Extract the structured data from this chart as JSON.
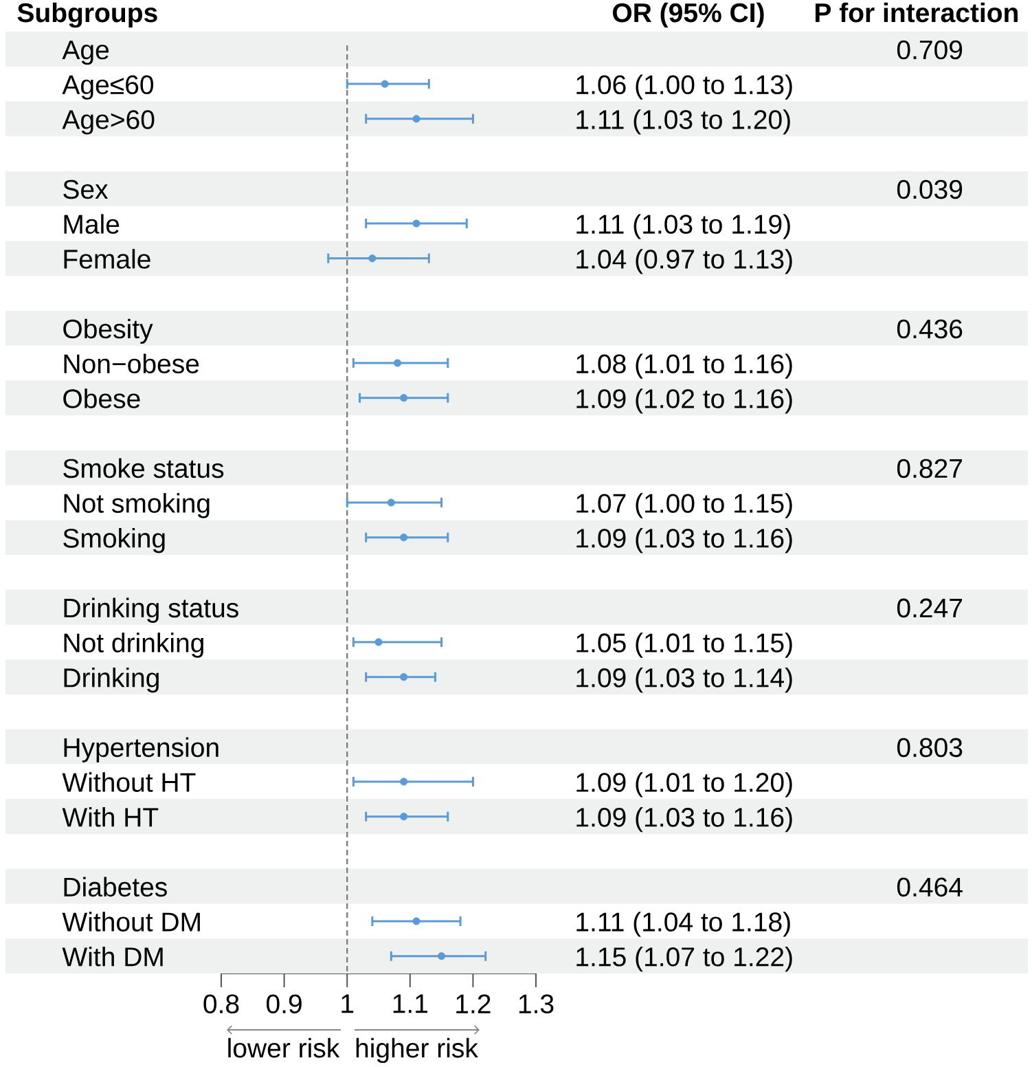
{
  "chart_data": {
    "type": "scatter",
    "orientation": "horizontal",
    "ylabel": "Subgroups",
    "annotations": [
      "OR (95% CI)",
      "P for interaction",
      "lower risk",
      "higher risk"
    ],
    "categories": [
      "Age",
      "Age≤60",
      "Age>60",
      null,
      "Sex",
      "Male",
      "Female",
      null,
      "Obesity",
      "Non−obese",
      "Obese",
      null,
      "Smoke status",
      "Not smoking",
      "Smoking",
      null,
      "Drinking status",
      "Not drinking",
      "Drinking",
      null,
      "Hypertension",
      "Without HT",
      "With HT",
      null,
      "Diabetes",
      "Without DM",
      "With DM"
    ],
    "values": [
      null,
      1.06,
      1.11,
      null,
      null,
      1.11,
      1.04,
      null,
      null,
      1.08,
      1.09,
      null,
      null,
      1.07,
      1.09,
      null,
      null,
      1.05,
      1.09,
      null,
      null,
      1.09,
      1.09,
      null,
      null,
      1.11,
      1.15
    ],
    "errors": [
      null,
      [
        1.0,
        1.13
      ],
      [
        1.03,
        1.2
      ],
      null,
      null,
      [
        1.03,
        1.19
      ],
      [
        0.97,
        1.13
      ],
      null,
      null,
      [
        1.01,
        1.16
      ],
      [
        1.02,
        1.16
      ],
      null,
      null,
      [
        1.0,
        1.15
      ],
      [
        1.03,
        1.16
      ],
      null,
      null,
      [
        1.01,
        1.15
      ],
      [
        1.03,
        1.14
      ],
      null,
      null,
      [
        1.01,
        1.2
      ],
      [
        1.03,
        1.16
      ],
      null,
      null,
      [
        1.04,
        1.18
      ],
      [
        1.07,
        1.22
      ]
    ],
    "value_labels": [
      null,
      "1.06 (1.00 to 1.13)",
      "1.11 (1.03 to 1.20)",
      null,
      null,
      "1.11 (1.03 to 1.19)",
      "1.04 (0.97 to 1.13)",
      null,
      null,
      "1.08 (1.01 to 1.16)",
      "1.09 (1.02 to 1.16)",
      null,
      null,
      "1.07 (1.00 to 1.15)",
      "1.09 (1.03 to 1.16)",
      null,
      null,
      "1.05 (1.01 to 1.15)",
      "1.09 (1.03 to 1.14)",
      null,
      null,
      "1.09 (1.01 to 1.20)",
      "1.09 (1.03 to 1.16)",
      null,
      null,
      "1.11 (1.04 to 1.18)",
      "1.15 (1.07 to 1.22)"
    ],
    "y2_categories": [
      "0.709",
      null,
      null,
      null,
      "0.039",
      null,
      null,
      null,
      "0.436",
      null,
      null,
      null,
      "0.827",
      null,
      null,
      null,
      "0.247",
      null,
      null,
      null,
      "0.803",
      null,
      null,
      null,
      "0.464",
      null,
      null
    ],
    "color": "#5b9bd5",
    "marker": "circle",
    "xlim": [
      0.8,
      1.3
    ],
    "xticks": [
      0.8,
      0.9,
      1,
      1.1,
      1.2,
      1.3
    ],
    "ref_lines": [
      {
        "axis": "x",
        "value": 1,
        "color": "#808080",
        "line_style": "dashed"
      }
    ],
    "bands": [
      {
        "axis": "y",
        "from": "Age",
        "to": "Age",
        "color": "#eef1f0"
      },
      {
        "axis": "y",
        "from": "Age>60",
        "to": "Age>60",
        "color": "#eef1f0"
      },
      {
        "axis": "y",
        "from": "Sex",
        "to": "Sex",
        "color": "#eef1f0"
      },
      {
        "axis": "y",
        "from": "Female",
        "to": "Female",
        "color": "#eef1f0"
      },
      {
        "axis": "y",
        "from": "Obesity",
        "to": "Obesity",
        "color": "#eef1f0"
      },
      {
        "axis": "y",
        "from": "Obese",
        "to": "Obese",
        "color": "#eef1f0"
      },
      {
        "axis": "y",
        "from": "Smoke status",
        "to": "Smoke status",
        "color": "#eef1f0"
      },
      {
        "axis": "y",
        "from": "Smoking",
        "to": "Smoking",
        "color": "#eef1f0"
      },
      {
        "axis": "y",
        "from": "Drinking status",
        "to": "Drinking status",
        "color": "#eef1f0"
      },
      {
        "axis": "y",
        "from": "Drinking",
        "to": "Drinking",
        "color": "#eef1f0"
      },
      {
        "axis": "y",
        "from": "Hypertension",
        "to": "Hypertension",
        "color": "#eef1f0"
      },
      {
        "axis": "y",
        "from": "With HT",
        "to": "With HT",
        "color": "#eef1f0"
      },
      {
        "axis": "y",
        "from": "Diabetes",
        "to": "Diabetes",
        "color": "#eef1f0"
      },
      {
        "axis": "y",
        "from": "With DM",
        "to": "With DM",
        "color": "#eef1f0"
      }
    ]
  }
}
